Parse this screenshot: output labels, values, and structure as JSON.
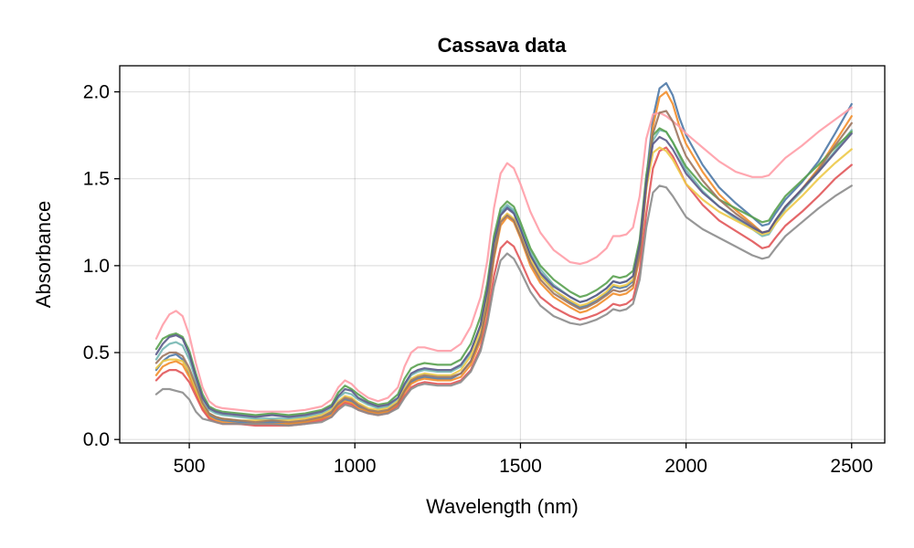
{
  "chart_data": {
    "type": "line",
    "title": "Cassava data",
    "xlabel": "Wavelength (nm)",
    "ylabel": "Absorbance",
    "xlim": [
      290,
      2600
    ],
    "ylim": [
      -0.02,
      2.15
    ],
    "xticks": [
      500,
      1000,
      1500,
      2000,
      2500
    ],
    "yticks": [
      0.0,
      0.5,
      1.0,
      1.5,
      2.0
    ],
    "xtick_labels": [
      "500",
      "1000",
      "1500",
      "2000",
      "2500"
    ],
    "ytick_labels": [
      "0.0",
      "0.5",
      "1.0",
      "1.5",
      "2.0"
    ],
    "grid": true,
    "legend": "none",
    "x": [
      400,
      420,
      440,
      460,
      480,
      500,
      520,
      540,
      560,
      580,
      600,
      650,
      700,
      750,
      800,
      850,
      900,
      930,
      950,
      970,
      990,
      1010,
      1040,
      1070,
      1100,
      1130,
      1150,
      1170,
      1190,
      1210,
      1250,
      1290,
      1320,
      1350,
      1380,
      1400,
      1420,
      1440,
      1460,
      1480,
      1500,
      1530,
      1560,
      1600,
      1650,
      1680,
      1700,
      1730,
      1760,
      1780,
      1800,
      1820,
      1840,
      1860,
      1880,
      1900,
      1920,
      1940,
      1960,
      1980,
      2000,
      2050,
      2100,
      2150,
      2200,
      2230,
      2250,
      2270,
      2300,
      2350,
      2400,
      2450,
      2500
    ],
    "series": [
      {
        "color": "#4e79a7",
        "values": [
          0.4,
          0.45,
          0.48,
          0.49,
          0.46,
          0.38,
          0.28,
          0.19,
          0.14,
          0.12,
          0.11,
          0.1,
          0.09,
          0.1,
          0.09,
          0.1,
          0.12,
          0.15,
          0.2,
          0.23,
          0.22,
          0.19,
          0.16,
          0.15,
          0.16,
          0.2,
          0.28,
          0.33,
          0.35,
          0.36,
          0.35,
          0.35,
          0.38,
          0.45,
          0.6,
          0.8,
          1.1,
          1.3,
          1.34,
          1.31,
          1.22,
          1.06,
          0.95,
          0.86,
          0.79,
          0.76,
          0.77,
          0.8,
          0.84,
          0.88,
          0.87,
          0.88,
          0.91,
          1.1,
          1.5,
          1.85,
          2.02,
          2.05,
          1.98,
          1.85,
          1.75,
          1.58,
          1.45,
          1.36,
          1.28,
          1.23,
          1.24,
          1.3,
          1.38,
          1.48,
          1.6,
          1.76,
          1.93
        ]
      },
      {
        "color": "#f28e2b",
        "values": [
          0.37,
          0.42,
          0.44,
          0.45,
          0.43,
          0.36,
          0.27,
          0.18,
          0.13,
          0.11,
          0.1,
          0.09,
          0.09,
          0.09,
          0.09,
          0.1,
          0.12,
          0.14,
          0.19,
          0.22,
          0.21,
          0.18,
          0.16,
          0.15,
          0.16,
          0.2,
          0.27,
          0.32,
          0.34,
          0.35,
          0.34,
          0.34,
          0.36,
          0.43,
          0.57,
          0.76,
          1.04,
          1.23,
          1.28,
          1.25,
          1.16,
          1.0,
          0.9,
          0.82,
          0.76,
          0.73,
          0.74,
          0.77,
          0.81,
          0.84,
          0.83,
          0.84,
          0.87,
          1.05,
          1.44,
          1.8,
          1.97,
          2.0,
          1.93,
          1.8,
          1.7,
          1.54,
          1.41,
          1.32,
          1.24,
          1.19,
          1.2,
          1.26,
          1.34,
          1.44,
          1.56,
          1.71,
          1.86
        ]
      },
      {
        "color": "#e15759",
        "values": [
          0.34,
          0.38,
          0.4,
          0.4,
          0.38,
          0.33,
          0.25,
          0.17,
          0.12,
          0.1,
          0.09,
          0.09,
          0.08,
          0.08,
          0.08,
          0.09,
          0.11,
          0.13,
          0.18,
          0.21,
          0.2,
          0.17,
          0.15,
          0.14,
          0.15,
          0.19,
          0.25,
          0.3,
          0.32,
          0.33,
          0.32,
          0.32,
          0.34,
          0.4,
          0.53,
          0.7,
          0.94,
          1.1,
          1.14,
          1.11,
          1.03,
          0.9,
          0.82,
          0.76,
          0.71,
          0.69,
          0.7,
          0.72,
          0.75,
          0.78,
          0.77,
          0.78,
          0.81,
          0.97,
          1.3,
          1.56,
          1.66,
          1.68,
          1.63,
          1.55,
          1.47,
          1.35,
          1.26,
          1.2,
          1.14,
          1.1,
          1.11,
          1.16,
          1.23,
          1.31,
          1.4,
          1.5,
          1.58
        ]
      },
      {
        "color": "#76b7b2",
        "values": [
          0.46,
          0.52,
          0.55,
          0.56,
          0.54,
          0.46,
          0.34,
          0.23,
          0.17,
          0.15,
          0.14,
          0.13,
          0.12,
          0.12,
          0.12,
          0.13,
          0.15,
          0.18,
          0.24,
          0.27,
          0.26,
          0.23,
          0.2,
          0.18,
          0.19,
          0.23,
          0.31,
          0.37,
          0.39,
          0.4,
          0.39,
          0.39,
          0.42,
          0.5,
          0.66,
          0.86,
          1.14,
          1.31,
          1.35,
          1.32,
          1.23,
          1.08,
          0.98,
          0.89,
          0.82,
          0.79,
          0.8,
          0.83,
          0.87,
          0.91,
          0.9,
          0.91,
          0.94,
          1.12,
          1.48,
          1.72,
          1.78,
          1.77,
          1.71,
          1.63,
          1.55,
          1.43,
          1.34,
          1.27,
          1.21,
          1.17,
          1.18,
          1.24,
          1.33,
          1.43,
          1.54,
          1.66,
          1.78
        ]
      },
      {
        "color": "#59a14f",
        "values": [
          0.52,
          0.58,
          0.6,
          0.61,
          0.59,
          0.51,
          0.38,
          0.26,
          0.19,
          0.17,
          0.16,
          0.15,
          0.14,
          0.15,
          0.14,
          0.15,
          0.17,
          0.2,
          0.27,
          0.31,
          0.29,
          0.26,
          0.22,
          0.2,
          0.21,
          0.26,
          0.35,
          0.41,
          0.43,
          0.44,
          0.43,
          0.43,
          0.46,
          0.55,
          0.71,
          0.9,
          1.17,
          1.33,
          1.37,
          1.34,
          1.25,
          1.1,
          1.0,
          0.92,
          0.85,
          0.82,
          0.83,
          0.86,
          0.9,
          0.94,
          0.93,
          0.94,
          0.97,
          1.15,
          1.52,
          1.75,
          1.79,
          1.77,
          1.71,
          1.64,
          1.57,
          1.46,
          1.38,
          1.33,
          1.28,
          1.25,
          1.26,
          1.32,
          1.4,
          1.49,
          1.58,
          1.68,
          1.77
        ]
      },
      {
        "color": "#edc948",
        "values": [
          0.41,
          0.45,
          0.46,
          0.46,
          0.45,
          0.39,
          0.29,
          0.2,
          0.15,
          0.13,
          0.12,
          0.11,
          0.11,
          0.11,
          0.11,
          0.12,
          0.14,
          0.17,
          0.22,
          0.25,
          0.24,
          0.21,
          0.18,
          0.17,
          0.18,
          0.22,
          0.29,
          0.35,
          0.37,
          0.38,
          0.37,
          0.37,
          0.4,
          0.48,
          0.63,
          0.82,
          1.09,
          1.26,
          1.3,
          1.27,
          1.18,
          1.04,
          0.94,
          0.86,
          0.8,
          0.77,
          0.78,
          0.81,
          0.85,
          0.89,
          0.88,
          0.89,
          0.92,
          1.1,
          1.44,
          1.65,
          1.68,
          1.66,
          1.61,
          1.54,
          1.47,
          1.38,
          1.31,
          1.26,
          1.21,
          1.18,
          1.19,
          1.24,
          1.31,
          1.4,
          1.5,
          1.59,
          1.67
        ]
      },
      {
        "color": "#ff9da7",
        "values": [
          0.58,
          0.66,
          0.72,
          0.74,
          0.71,
          0.6,
          0.44,
          0.3,
          0.22,
          0.19,
          0.18,
          0.17,
          0.16,
          0.16,
          0.16,
          0.17,
          0.19,
          0.23,
          0.3,
          0.34,
          0.32,
          0.28,
          0.24,
          0.22,
          0.24,
          0.3,
          0.42,
          0.5,
          0.53,
          0.53,
          0.51,
          0.51,
          0.55,
          0.65,
          0.82,
          1.03,
          1.33,
          1.53,
          1.59,
          1.56,
          1.47,
          1.31,
          1.19,
          1.09,
          1.02,
          1.01,
          1.02,
          1.05,
          1.1,
          1.17,
          1.17,
          1.18,
          1.22,
          1.4,
          1.73,
          1.87,
          1.88,
          1.86,
          1.83,
          1.8,
          1.76,
          1.68,
          1.6,
          1.54,
          1.51,
          1.51,
          1.52,
          1.56,
          1.62,
          1.69,
          1.77,
          1.84,
          1.91
        ]
      },
      {
        "color": "#9c755f",
        "values": [
          0.44,
          0.48,
          0.5,
          0.5,
          0.48,
          0.41,
          0.31,
          0.21,
          0.15,
          0.13,
          0.12,
          0.11,
          0.1,
          0.11,
          0.1,
          0.11,
          0.13,
          0.16,
          0.21,
          0.24,
          0.23,
          0.2,
          0.17,
          0.16,
          0.17,
          0.21,
          0.28,
          0.34,
          0.36,
          0.37,
          0.36,
          0.36,
          0.38,
          0.45,
          0.59,
          0.78,
          1.06,
          1.25,
          1.29,
          1.26,
          1.17,
          1.02,
          0.92,
          0.84,
          0.78,
          0.75,
          0.76,
          0.79,
          0.83,
          0.86,
          0.85,
          0.86,
          0.89,
          1.07,
          1.45,
          1.76,
          1.88,
          1.89,
          1.83,
          1.72,
          1.63,
          1.49,
          1.38,
          1.3,
          1.23,
          1.19,
          1.2,
          1.26,
          1.34,
          1.44,
          1.55,
          1.69,
          1.82
        ]
      },
      {
        "color": "#8c8c8c",
        "values": [
          0.26,
          0.29,
          0.29,
          0.28,
          0.27,
          0.23,
          0.16,
          0.12,
          0.11,
          0.1,
          0.09,
          0.09,
          0.09,
          0.09,
          0.08,
          0.09,
          0.1,
          0.13,
          0.17,
          0.2,
          0.19,
          0.17,
          0.15,
          0.14,
          0.15,
          0.18,
          0.24,
          0.29,
          0.31,
          0.32,
          0.31,
          0.31,
          0.33,
          0.39,
          0.51,
          0.67,
          0.88,
          1.03,
          1.07,
          1.04,
          0.97,
          0.85,
          0.77,
          0.71,
          0.67,
          0.66,
          0.67,
          0.69,
          0.72,
          0.75,
          0.74,
          0.75,
          0.78,
          0.92,
          1.22,
          1.42,
          1.46,
          1.45,
          1.4,
          1.34,
          1.28,
          1.21,
          1.16,
          1.11,
          1.06,
          1.04,
          1.05,
          1.1,
          1.17,
          1.25,
          1.33,
          1.4,
          1.46
        ]
      },
      {
        "color": "#5a5a8a",
        "values": [
          0.49,
          0.55,
          0.59,
          0.6,
          0.58,
          0.49,
          0.36,
          0.24,
          0.18,
          0.16,
          0.15,
          0.14,
          0.13,
          0.14,
          0.13,
          0.14,
          0.16,
          0.19,
          0.25,
          0.29,
          0.28,
          0.24,
          0.21,
          0.19,
          0.2,
          0.24,
          0.32,
          0.38,
          0.4,
          0.41,
          0.4,
          0.4,
          0.43,
          0.51,
          0.66,
          0.86,
          1.13,
          1.29,
          1.33,
          1.3,
          1.21,
          1.06,
          0.96,
          0.88,
          0.82,
          0.79,
          0.8,
          0.83,
          0.87,
          0.91,
          0.9,
          0.91,
          0.94,
          1.12,
          1.48,
          1.7,
          1.74,
          1.72,
          1.67,
          1.6,
          1.53,
          1.42,
          1.34,
          1.28,
          1.22,
          1.19,
          1.2,
          1.26,
          1.34,
          1.44,
          1.54,
          1.65,
          1.76
        ]
      }
    ]
  }
}
